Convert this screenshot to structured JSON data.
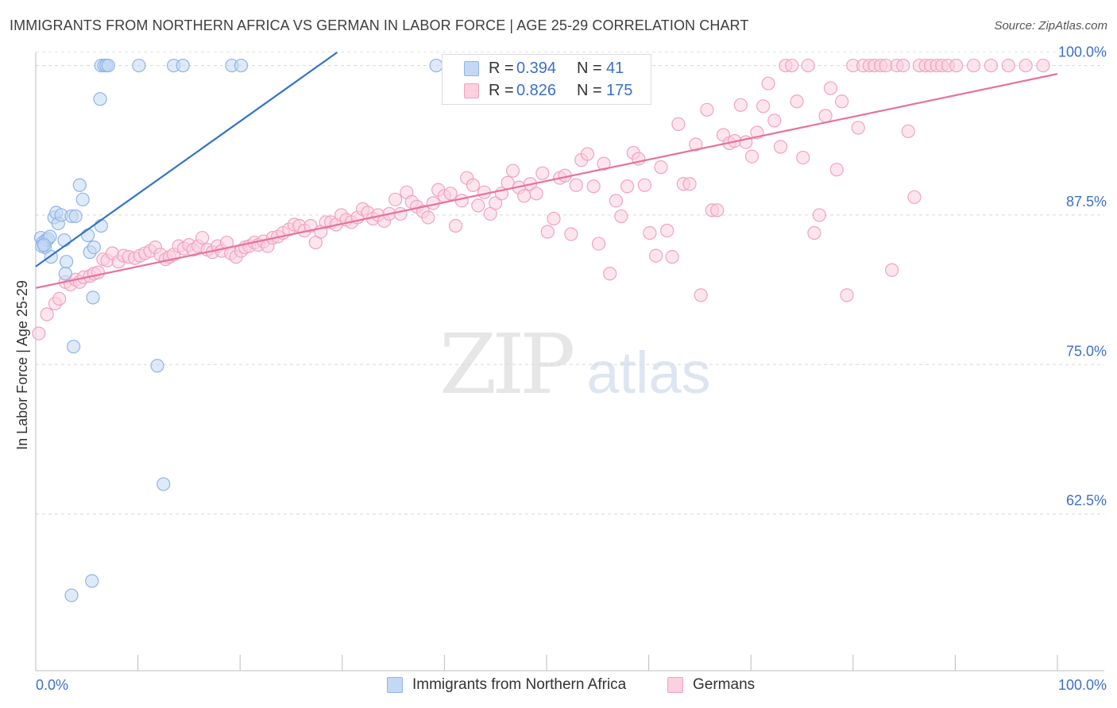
{
  "chart_data": {
    "type": "scatter",
    "title": "IMMIGRANTS FROM NORTHERN AFRICA VS GERMAN IN LABOR FORCE | AGE 25-29 CORRELATION CHART",
    "source": "Source: ZipAtlas.com",
    "ylabel": "In Labor Force | Age 25-29",
    "xlabel": "",
    "xlim": [
      0,
      100
    ],
    "ylim": [
      49.4,
      101.1
    ],
    "x_tick_labels": [
      "0.0%",
      "100.0%"
    ],
    "y_tick_labels": [
      "100.0%",
      "87.5%",
      "75.0%",
      "62.5%"
    ],
    "y_ticks": [
      100,
      87.5,
      75,
      62.5
    ],
    "grid": "horizontal dashed",
    "legend_position": "top-center",
    "series": [
      {
        "name": "Immigrants from Northern Africa",
        "color": "#8fb4e8",
        "fill": "#c5d8f3",
        "line_color": "#3272c8",
        "r": "0.394",
        "n": "41",
        "trend": {
          "x": [
            0,
            29.5
          ],
          "y": [
            83.2,
            101.1
          ]
        },
        "points": [
          [
            0.5,
            85.6
          ],
          [
            0.7,
            85.2
          ],
          [
            0.9,
            84.8
          ],
          [
            1.0,
            85.4
          ],
          [
            1.2,
            85.5
          ],
          [
            1.4,
            85.7
          ],
          [
            0.6,
            84.9
          ],
          [
            0.8,
            85.0
          ],
          [
            1.5,
            84.0
          ],
          [
            1.8,
            87.3
          ],
          [
            2.0,
            87.7
          ],
          [
            2.2,
            86.8
          ],
          [
            2.5,
            87.5
          ],
          [
            2.8,
            85.4
          ],
          [
            3.0,
            83.6
          ],
          [
            2.9,
            82.6
          ],
          [
            3.5,
            87.4
          ],
          [
            3.9,
            87.4
          ],
          [
            4.3,
            90.0
          ],
          [
            4.6,
            88.8
          ],
          [
            5.1,
            85.8
          ],
          [
            5.3,
            84.4
          ],
          [
            5.7,
            84.8
          ],
          [
            5.6,
            80.6
          ],
          [
            6.4,
            86.6
          ],
          [
            6.3,
            97.2
          ],
          [
            6.4,
            100.0
          ],
          [
            6.7,
            100.0
          ],
          [
            6.9,
            100.0
          ],
          [
            7.1,
            100.0
          ],
          [
            10.1,
            100.0
          ],
          [
            13.5,
            100.0
          ],
          [
            14.4,
            100.0
          ],
          [
            19.2,
            100.0
          ],
          [
            20.1,
            100.0
          ],
          [
            39.2,
            100.0
          ],
          [
            11.9,
            74.9
          ],
          [
            12.5,
            65.0
          ],
          [
            3.7,
            76.5
          ],
          [
            5.5,
            56.9
          ],
          [
            3.5,
            55.7
          ]
        ]
      },
      {
        "name": "Germans",
        "color": "#f0a3bf",
        "fill": "#fbd0df",
        "line_color": "#e8719a",
        "r": "0.826",
        "n": "175",
        "trend": {
          "x": [
            0,
            100
          ],
          "y": [
            81.4,
            99.3
          ]
        },
        "points": [
          [
            0.3,
            77.6
          ],
          [
            1.1,
            79.2
          ],
          [
            1.9,
            80.1
          ],
          [
            2.3,
            80.5
          ],
          [
            2.9,
            81.9
          ],
          [
            3.4,
            81.7
          ],
          [
            3.9,
            82.1
          ],
          [
            4.3,
            81.9
          ],
          [
            4.7,
            82.3
          ],
          [
            5.3,
            82.4
          ],
          [
            5.7,
            82.6
          ],
          [
            6.1,
            82.7
          ],
          [
            6.6,
            83.8
          ],
          [
            7.0,
            83.7
          ],
          [
            7.5,
            84.3
          ],
          [
            8.1,
            83.6
          ],
          [
            8.6,
            84.1
          ],
          [
            9.1,
            84.0
          ],
          [
            9.7,
            83.9
          ],
          [
            10.2,
            84.1
          ],
          [
            10.7,
            84.3
          ],
          [
            11.2,
            84.5
          ],
          [
            11.7,
            84.8
          ],
          [
            12.2,
            84.2
          ],
          [
            12.7,
            83.8
          ],
          [
            13.1,
            84.0
          ],
          [
            13.5,
            84.2
          ],
          [
            14.0,
            84.9
          ],
          [
            14.5,
            84.7
          ],
          [
            15.0,
            85.0
          ],
          [
            15.4,
            84.6
          ],
          [
            15.9,
            84.9
          ],
          [
            16.3,
            85.6
          ],
          [
            16.8,
            84.6
          ],
          [
            17.3,
            84.4
          ],
          [
            17.8,
            84.9
          ],
          [
            18.2,
            84.5
          ],
          [
            18.7,
            85.2
          ],
          [
            19.1,
            84.3
          ],
          [
            19.6,
            84.0
          ],
          [
            20.1,
            84.5
          ],
          [
            20.5,
            84.8
          ],
          [
            20.9,
            84.9
          ],
          [
            21.4,
            85.2
          ],
          [
            21.8,
            85.0
          ],
          [
            22.3,
            85.3
          ],
          [
            22.7,
            84.9
          ],
          [
            23.2,
            85.6
          ],
          [
            23.7,
            85.7
          ],
          [
            24.2,
            86.0
          ],
          [
            24.8,
            86.3
          ],
          [
            25.3,
            86.7
          ],
          [
            25.8,
            86.6
          ],
          [
            26.3,
            86.2
          ],
          [
            26.9,
            86.6
          ],
          [
            27.4,
            85.2
          ],
          [
            27.9,
            86.1
          ],
          [
            28.4,
            86.9
          ],
          [
            28.9,
            86.9
          ],
          [
            29.4,
            86.7
          ],
          [
            29.9,
            87.5
          ],
          [
            30.4,
            87.1
          ],
          [
            30.9,
            86.9
          ],
          [
            31.5,
            87.3
          ],
          [
            32.0,
            88.0
          ],
          [
            32.5,
            87.7
          ],
          [
            33.0,
            87.2
          ],
          [
            33.5,
            87.5
          ],
          [
            34.1,
            87.0
          ],
          [
            34.6,
            87.6
          ],
          [
            35.2,
            88.8
          ],
          [
            35.7,
            87.6
          ],
          [
            36.3,
            89.4
          ],
          [
            36.8,
            88.6
          ],
          [
            37.3,
            88.2
          ],
          [
            37.9,
            87.8
          ],
          [
            38.4,
            87.3
          ],
          [
            38.9,
            88.5
          ],
          [
            39.4,
            89.6
          ],
          [
            40.0,
            89.1
          ],
          [
            40.6,
            89.3
          ],
          [
            41.1,
            86.6
          ],
          [
            41.7,
            88.7
          ],
          [
            42.2,
            90.6
          ],
          [
            42.8,
            90.0
          ],
          [
            43.3,
            88.3
          ],
          [
            43.9,
            89.4
          ],
          [
            44.5,
            87.6
          ],
          [
            45.0,
            88.5
          ],
          [
            45.6,
            89.3
          ],
          [
            46.2,
            90.2
          ],
          [
            46.7,
            91.2
          ],
          [
            47.3,
            89.8
          ],
          [
            47.8,
            89.1
          ],
          [
            48.4,
            90.1
          ],
          [
            49.0,
            89.3
          ],
          [
            49.6,
            91.0
          ],
          [
            50.1,
            86.1
          ],
          [
            50.7,
            87.2
          ],
          [
            51.3,
            90.6
          ],
          [
            51.8,
            90.8
          ],
          [
            52.4,
            85.9
          ],
          [
            52.9,
            90.0
          ],
          [
            53.4,
            92.1
          ],
          [
            54.0,
            92.6
          ],
          [
            54.6,
            89.9
          ],
          [
            55.1,
            85.1
          ],
          [
            55.6,
            91.8
          ],
          [
            56.2,
            82.6
          ],
          [
            56.8,
            88.7
          ],
          [
            57.3,
            87.4
          ],
          [
            57.9,
            89.9
          ],
          [
            58.5,
            92.7
          ],
          [
            59.0,
            92.2
          ],
          [
            59.6,
            90.0
          ],
          [
            60.1,
            86.0
          ],
          [
            60.7,
            84.1
          ],
          [
            61.2,
            91.5
          ],
          [
            61.8,
            86.2
          ],
          [
            62.3,
            84.0
          ],
          [
            62.9,
            95.1
          ],
          [
            63.4,
            90.1
          ],
          [
            64.0,
            90.1
          ],
          [
            64.6,
            93.4
          ],
          [
            65.1,
            80.8
          ],
          [
            65.7,
            96.3
          ],
          [
            66.2,
            87.9
          ],
          [
            66.7,
            87.9
          ],
          [
            67.3,
            94.2
          ],
          [
            67.9,
            93.5
          ],
          [
            68.4,
            93.7
          ],
          [
            69.0,
            96.7
          ],
          [
            69.5,
            93.6
          ],
          [
            70.1,
            92.4
          ],
          [
            70.6,
            94.4
          ],
          [
            71.2,
            96.6
          ],
          [
            71.7,
            98.5
          ],
          [
            72.3,
            95.4
          ],
          [
            72.9,
            93.2
          ],
          [
            73.4,
            100.0
          ],
          [
            74.0,
            100.0
          ],
          [
            74.5,
            97.0
          ],
          [
            75.1,
            92.3
          ],
          [
            75.6,
            100.0
          ],
          [
            76.2,
            86.0
          ],
          [
            76.7,
            87.5
          ],
          [
            77.3,
            95.8
          ],
          [
            77.8,
            98.1
          ],
          [
            78.4,
            91.3
          ],
          [
            78.9,
            97.0
          ],
          [
            79.4,
            80.8
          ],
          [
            80.0,
            100.0
          ],
          [
            80.5,
            94.8
          ],
          [
            81.0,
            100.0
          ],
          [
            81.6,
            100.0
          ],
          [
            82.1,
            100.0
          ],
          [
            82.7,
            100.0
          ],
          [
            83.2,
            100.0
          ],
          [
            83.8,
            82.9
          ],
          [
            84.3,
            100.0
          ],
          [
            84.9,
            100.0
          ],
          [
            85.4,
            94.5
          ],
          [
            86.0,
            89.0
          ],
          [
            86.5,
            100.0
          ],
          [
            87.1,
            100.0
          ],
          [
            87.6,
            100.0
          ],
          [
            88.2,
            100.0
          ],
          [
            88.7,
            100.0
          ],
          [
            89.3,
            100.0
          ],
          [
            90.1,
            100.0
          ],
          [
            91.8,
            100.0
          ],
          [
            93.5,
            100.0
          ],
          [
            95.2,
            100.0
          ],
          [
            96.9,
            100.0
          ],
          [
            98.6,
            100.0
          ]
        ]
      }
    ]
  }
}
